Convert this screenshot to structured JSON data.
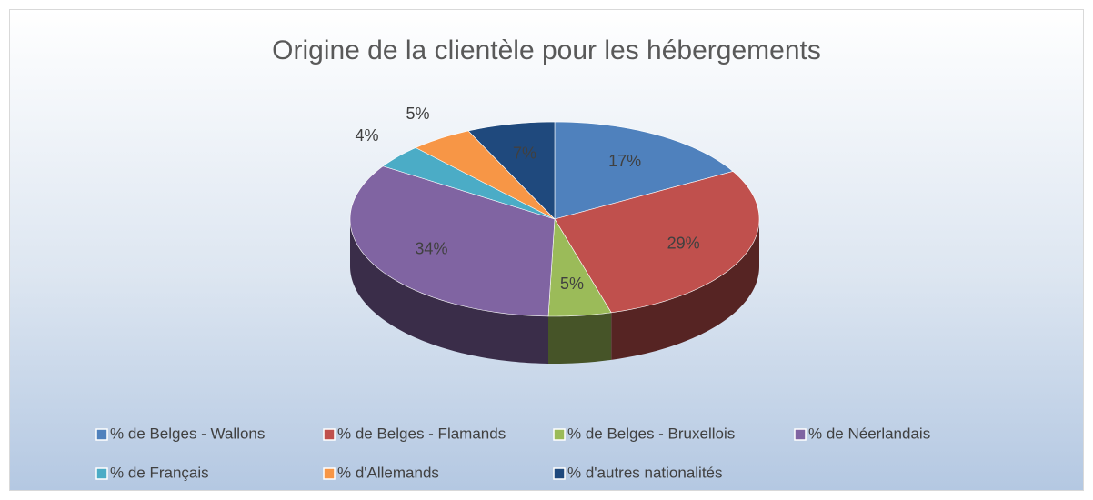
{
  "chart_data": {
    "type": "pie3d",
    "title": "Origine de la clientèle pour les hébergements",
    "categories": [
      "% de Belges - Wallons",
      "% de Belges - Flamands",
      "% de Belges - Bruxellois",
      "% de Néerlandais",
      "% de Français",
      "% d'Allemands",
      "% d'autres nationalités"
    ],
    "values": [
      17,
      29,
      5,
      34,
      4,
      5,
      7
    ],
    "value_labels": [
      "17%",
      "29%",
      "5%",
      "34%",
      "4%",
      "5%",
      "7%"
    ],
    "colors": [
      "#4f81bd",
      "#c0504d",
      "#9bbb59",
      "#8064a2",
      "#4bacc6",
      "#f79646",
      "#1f497d"
    ],
    "legend": "bottom"
  }
}
